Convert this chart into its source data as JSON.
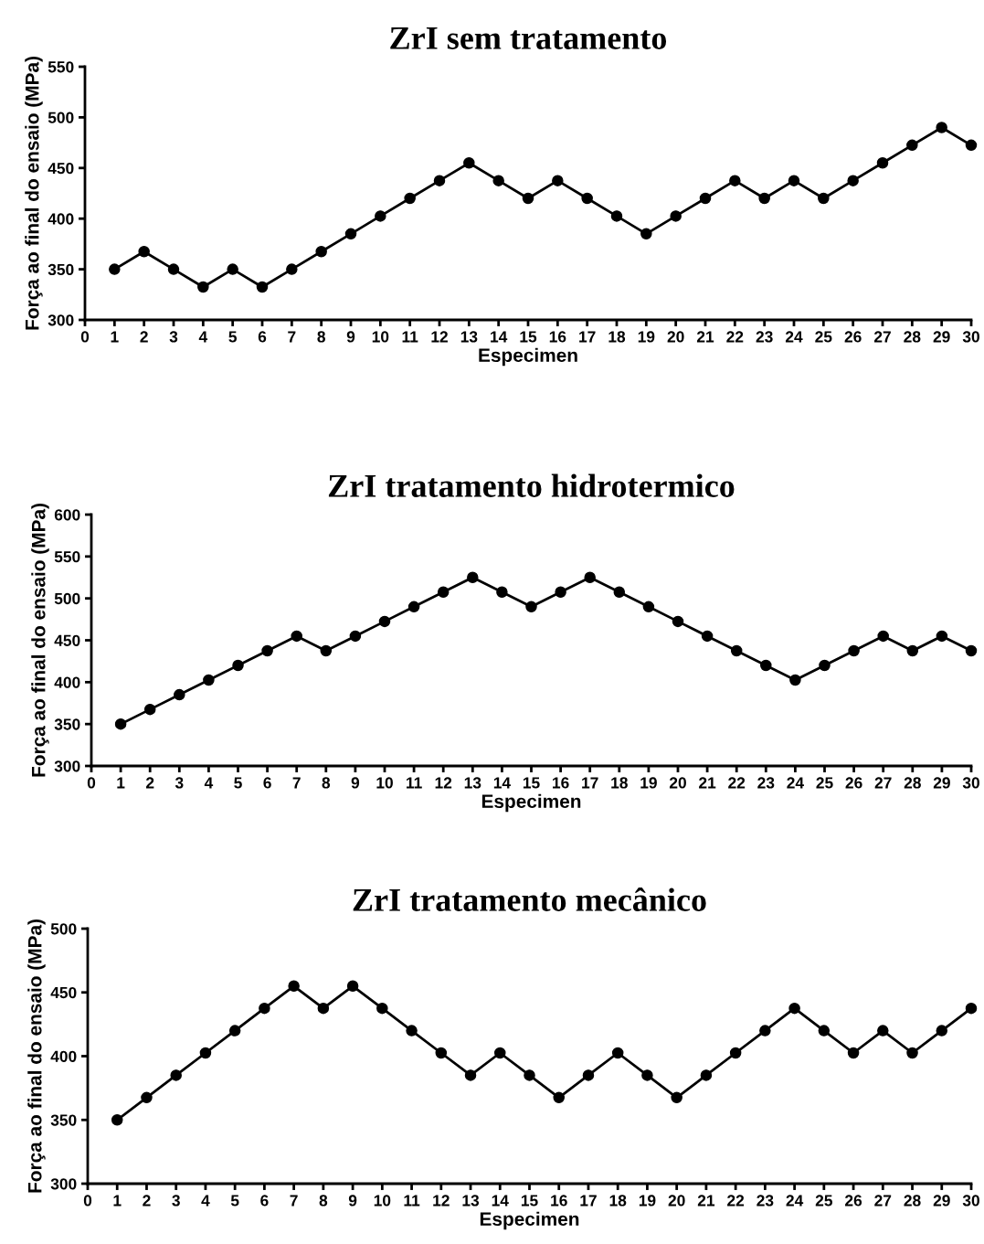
{
  "chart_data": [
    {
      "type": "line",
      "title": "ZrI sem tratamento",
      "xlabel": "Especimen",
      "ylabel": "Força ao final do ensaio (MPa)",
      "x": [
        1,
        2,
        3,
        4,
        5,
        6,
        7,
        8,
        9,
        10,
        11,
        12,
        13,
        14,
        15,
        16,
        17,
        18,
        19,
        20,
        21,
        22,
        23,
        24,
        25,
        26,
        27,
        28,
        29,
        30
      ],
      "series": [
        {
          "color": "#000000",
          "values": [
            350,
            367.5,
            350,
            332.5,
            350,
            332.5,
            350,
            367.5,
            385,
            402.5,
            420,
            437.5,
            455,
            437.5,
            420,
            437.5,
            420,
            402.5,
            385,
            402.5,
            420,
            437.5,
            420,
            437.5,
            420,
            437.5,
            455,
            472.5,
            490,
            472.5
          ]
        }
      ],
      "xlim": [
        0,
        30
      ],
      "xticks": [
        0,
        1,
        2,
        3,
        4,
        5,
        6,
        7,
        8,
        9,
        10,
        11,
        12,
        13,
        14,
        15,
        16,
        17,
        18,
        19,
        20,
        21,
        22,
        23,
        24,
        25,
        26,
        27,
        28,
        29,
        30
      ],
      "ylim": [
        300,
        550
      ],
      "yticks": [
        300,
        350,
        400,
        450,
        500,
        550
      ],
      "grid": false,
      "marker": "circle",
      "line_style": "solid"
    },
    {
      "type": "line",
      "title": "ZrI tratamento hidrotermico",
      "xlabel": "Especimen",
      "ylabel": "Força ao final do ensaio (MPa)",
      "x": [
        1,
        2,
        3,
        4,
        5,
        6,
        7,
        8,
        9,
        10,
        11,
        12,
        13,
        14,
        15,
        16,
        17,
        18,
        19,
        20,
        21,
        22,
        23,
        24,
        25,
        26,
        27,
        28,
        29,
        30
      ],
      "series": [
        {
          "color": "#000000",
          "values": [
            350,
            367.5,
            385,
            402.5,
            420,
            437.5,
            455,
            437.5,
            455,
            472.5,
            490,
            507.5,
            525,
            507.5,
            490,
            507.5,
            525,
            507.5,
            490,
            472.5,
            455,
            437.5,
            420,
            402.5,
            420,
            437.5,
            455,
            437.5,
            455,
            437.5
          ]
        }
      ],
      "xlim": [
        0,
        30
      ],
      "xticks": [
        0,
        1,
        2,
        3,
        4,
        5,
        6,
        7,
        8,
        9,
        10,
        11,
        12,
        13,
        14,
        15,
        16,
        17,
        18,
        19,
        20,
        21,
        22,
        23,
        24,
        25,
        26,
        27,
        28,
        29,
        30
      ],
      "ylim": [
        300,
        600
      ],
      "yticks": [
        300,
        350,
        400,
        450,
        500,
        550,
        600
      ],
      "grid": false,
      "marker": "circle",
      "line_style": "solid"
    },
    {
      "type": "line",
      "title": "ZrI tratamento mecânico",
      "xlabel": "Especimen",
      "ylabel": "Força ao final do ensaio (MPa)",
      "x": [
        1,
        2,
        3,
        4,
        5,
        6,
        7,
        8,
        9,
        10,
        11,
        12,
        13,
        14,
        15,
        16,
        17,
        18,
        19,
        20,
        21,
        22,
        23,
        24,
        25,
        26,
        27,
        28,
        29,
        30
      ],
      "series": [
        {
          "color": "#000000",
          "values": [
            350,
            367.5,
            385,
            402.5,
            420,
            437.5,
            455,
            437.5,
            455,
            437.5,
            420,
            402.5,
            385,
            402.5,
            385,
            367.5,
            385,
            402.5,
            385,
            367.5,
            385,
            402.5,
            420,
            437.5,
            420,
            402.5,
            420,
            402.5,
            420,
            437.5
          ]
        }
      ],
      "xlim": [
        0,
        30
      ],
      "xticks": [
        0,
        1,
        2,
        3,
        4,
        5,
        6,
        7,
        8,
        9,
        10,
        11,
        12,
        13,
        14,
        15,
        16,
        17,
        18,
        19,
        20,
        21,
        22,
        23,
        24,
        25,
        26,
        27,
        28,
        29,
        30
      ],
      "ylim": [
        300,
        500
      ],
      "yticks": [
        300,
        350,
        400,
        450,
        500
      ],
      "grid": false,
      "marker": "circle",
      "line_style": "solid"
    }
  ]
}
